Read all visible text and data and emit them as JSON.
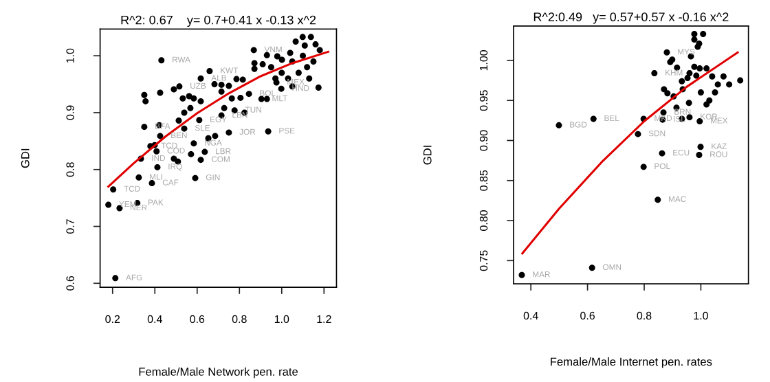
{
  "chart_data": [
    {
      "type": "scatter",
      "title": "R^2: 0.67    y= 0.7+0.41 x -0.13 x^2",
      "xlabel": "Female/Male Network pen. rate",
      "ylabel": "GDI",
      "xlim": [
        0.141,
        1.259
      ],
      "ylim": [
        0.593,
        1.047
      ],
      "xticks": [
        0.2,
        0.4,
        0.6,
        0.8,
        {
          "value": 1.0,
          "label": "1.0"
        },
        1.2
      ],
      "yticks": [
        0.6,
        0.7,
        0.8,
        0.9,
        {
          "value": 1.0,
          "label": "1.0"
        }
      ],
      "series": [
        {
          "marker": "circle",
          "color": "#000000",
          "x": [
            0.431,
            0.659,
            0.617,
            0.682,
            0.715,
            0.715,
            0.75,
            0.786,
            0.816,
            0.868,
            0.871,
            0.871,
            0.91,
            0.93,
            0.979,
            1.001,
            1.04,
            1.066,
            1.099,
            1.138,
            1.109,
            0.998,
            1.05,
            1.174,
            0.35,
            0.356,
            0.425,
            0.49,
            0.516,
            0.532,
            0.562,
            0.584,
            0.617,
            0.764,
            0.805,
            0.845,
            0.904,
            0.93,
            0.568,
            0.539,
            0.728,
            0.777,
            0.824,
            0.715,
            0.35,
            0.421,
            0.513,
            0.61,
            0.539,
            0.425,
            0.936,
            0.75,
            0.685,
            0.653,
            0.584,
            0.379,
            0.399,
            0.408,
            0.334,
            0.49,
            0.509,
            0.571,
            0.636,
            0.617,
            0.412,
            0.324,
            0.386,
            0.591,
            0.203,
            0.18,
            0.233,
            0.317,
            0.213,
            0.975,
            1.05,
            1.1,
            1.12,
            1.15,
            1.18,
            1.08,
            1.0,
            1.03,
            1.13,
            1.16,
            0.95,
            0.97
          ],
          "values": [
            0.992,
            0.973,
            0.96,
            0.95,
            0.949,
            0.937,
            0.947,
            0.959,
            0.958,
            1.01,
            0.987,
            0.977,
            0.985,
            1.001,
            0.999,
            0.993,
            1.005,
            1.025,
            1.033,
            1.033,
            1.018,
            0.942,
            0.946,
            0.944,
            0.931,
            0.92,
            0.935,
            0.941,
            0.946,
            0.925,
            0.929,
            0.925,
            0.92,
            0.925,
            0.926,
            0.933,
            0.924,
            0.924,
            0.908,
            0.9,
            0.908,
            0.904,
            0.9,
            0.895,
            0.875,
            0.878,
            0.886,
            0.887,
            0.872,
            0.859,
            0.867,
            0.865,
            0.859,
            0.855,
            0.846,
            0.841,
            0.843,
            0.832,
            0.819,
            0.819,
            0.814,
            0.827,
            0.831,
            0.817,
            0.804,
            0.786,
            0.776,
            0.785,
            0.765,
            0.738,
            0.732,
            0.741,
            0.609,
            0.953,
            0.99,
            1.0,
            0.98,
            0.99,
            1.01,
            0.97,
            0.97,
            0.96,
            0.96,
            1.02,
            0.98,
            0.96
          ]
        },
        {
          "type": "line",
          "marker": "none",
          "color": "#e00000",
          "x": [
            0.18,
            0.3,
            0.45,
            0.6,
            0.75,
            0.9,
            1.05,
            1.22
          ],
          "values": [
            0.77,
            0.811,
            0.858,
            0.899,
            0.934,
            0.964,
            0.987,
            1.007
          ]
        }
      ],
      "annotations": [
        {
          "text": "RWA",
          "x": 0.431,
          "y": 0.992
        },
        {
          "text": "KWT",
          "x": 0.659,
          "y": 0.973
        },
        {
          "text": "ALB",
          "x": 0.617,
          "y": 0.96
        },
        {
          "text": "UZB",
          "x": 0.516,
          "y": 0.946
        },
        {
          "text": "VNM",
          "x": 0.868,
          "y": 1.01
        },
        {
          "text": "BOL",
          "x": 0.845,
          "y": 0.933
        },
        {
          "text": "MLT",
          "x": 0.904,
          "y": 0.924
        },
        {
          "text": "MEX",
          "x": 0.975,
          "y": 0.953
        },
        {
          "text": "HND",
          "x": 0.998,
          "y": 0.942
        },
        {
          "text": "PSE",
          "x": 0.936,
          "y": 0.867
        },
        {
          "text": "JOR",
          "x": 0.75,
          "y": 0.865
        },
        {
          "text": "LBN",
          "x": 0.715,
          "y": 0.895
        },
        {
          "text": "EGY",
          "x": 0.61,
          "y": 0.887
        },
        {
          "text": "TUN",
          "x": 0.777,
          "y": 0.904
        },
        {
          "text": "SLE",
          "x": 0.539,
          "y": 0.872
        },
        {
          "text": "BEN",
          "x": 0.425,
          "y": 0.859
        },
        {
          "text": "BFA",
          "x": 0.35,
          "y": 0.875
        },
        {
          "text": "NGA",
          "x": 0.584,
          "y": 0.846
        },
        {
          "text": "TCD",
          "x": 0.379,
          "y": 0.841
        },
        {
          "text": "COD",
          "x": 0.408,
          "y": 0.832
        },
        {
          "text": "LBR",
          "x": 0.636,
          "y": 0.831
        },
        {
          "text": "COM",
          "x": 0.617,
          "y": 0.817
        },
        {
          "text": "IND",
          "x": 0.334,
          "y": 0.819
        },
        {
          "text": "IRQ",
          "x": 0.412,
          "y": 0.804
        },
        {
          "text": "MLI",
          "x": 0.324,
          "y": 0.786
        },
        {
          "text": "CAF",
          "x": 0.386,
          "y": 0.776
        },
        {
          "text": "GIN",
          "x": 0.591,
          "y": 0.785
        },
        {
          "text": "TCD",
          "x": 0.203,
          "y": 0.765
        },
        {
          "text": "YEM",
          "x": 0.18,
          "y": 0.738
        },
        {
          "text": "NER",
          "x": 0.233,
          "y": 0.732
        },
        {
          "text": "PAK",
          "x": 0.317,
          "y": 0.741
        },
        {
          "text": "AFG",
          "x": 0.213,
          "y": 0.609
        }
      ]
    },
    {
      "type": "scatter",
      "title": "R^2:0.49   y= 0.57+0.57 x -0.16 x^2",
      "xlabel": "Female/Male Internet pen. rates",
      "ylabel": "GDI",
      "xlim": [
        0.339,
        1.168
      ],
      "ylim": [
        0.721,
        1.043
      ],
      "xticks": [
        0.4,
        0.6,
        0.8,
        {
          "value": 1.0,
          "label": "1.0"
        }
      ],
      "yticks": [
        {
          "value": 0.75,
          "label": "0.75"
        },
        {
          "value": 0.8,
          "label": "0.80"
        },
        {
          "value": 0.85,
          "label": "0.85"
        },
        {
          "value": 0.9,
          "label": "0.90"
        },
        {
          "value": 0.95,
          "label": "0.95"
        },
        {
          "value": 1.0,
          "label": "1.00"
        }
      ],
      "series": [
        {
          "marker": "circle",
          "color": "#000000",
          "x": [
            0.499,
            0.621,
            0.798,
            0.865,
            0.933,
            0.96,
            0.996,
            0.778,
            0.868,
            0.914,
            0.958,
            0.836,
            0.88,
            0.892,
            0.899,
            0.916,
            0.87,
            0.882,
            0.904,
            0.936,
            0.933,
            0.96,
            0.965,
            0.977,
            1.008,
            0.977,
            0.994,
            0.989,
            0.977,
            0.984,
            0.953,
            1.139,
            0.996,
            0.999,
            0.994,
            0.863,
            0.798,
            0.848,
            0.616,
            0.368,
            1.02,
            1.04,
            1.06,
            1.05,
            1.03,
            1.08,
            1.1,
            1.0,
            1.02
          ],
          "values": [
            0.919,
            0.927,
            0.927,
            0.926,
            0.927,
            0.929,
            0.924,
            0.908,
            0.935,
            0.941,
            0.947,
            0.984,
            1.01,
            0.998,
            1.001,
            0.991,
            0.964,
            0.959,
            0.955,
            0.964,
            0.974,
            0.984,
            1.005,
            1.033,
            1.033,
            1.026,
            1.021,
            1.017,
            0.992,
            0.981,
            0.978,
            0.975,
            0.99,
            0.892,
            0.882,
            0.884,
            0.867,
            0.826,
            0.741,
            0.732,
            0.99,
            0.98,
            0.97,
            0.96,
            0.95,
            0.98,
            0.97,
            0.96,
            0.945
          ]
        },
        {
          "type": "line",
          "marker": "none",
          "color": "#e00000",
          "x": [
            0.37,
            0.5,
            0.65,
            0.8,
            0.95,
            1.13
          ],
          "values": [
            0.759,
            0.815,
            0.873,
            0.924,
            0.967,
            1.01
          ]
        }
      ],
      "annotations": [
        {
          "text": "BGD",
          "x": 0.499,
          "y": 0.919
        },
        {
          "text": "BEL",
          "x": 0.621,
          "y": 0.927
        },
        {
          "text": "MKD",
          "x": 0.798,
          "y": 0.927
        },
        {
          "text": "ISL",
          "x": 0.865,
          "y": 0.926
        },
        {
          "text": "KOR",
          "x": 0.96,
          "y": 0.929
        },
        {
          "text": "MEX",
          "x": 0.996,
          "y": 0.924
        },
        {
          "text": "SDN",
          "x": 0.778,
          "y": 0.908
        },
        {
          "text": "BRN",
          "x": 0.868,
          "y": 0.935
        },
        {
          "text": "KHM",
          "x": 0.836,
          "y": 0.984
        },
        {
          "text": "MYS",
          "x": 0.88,
          "y": 1.01
        },
        {
          "text": "KAZ",
          "x": 0.999,
          "y": 0.892
        },
        {
          "text": "ROU",
          "x": 0.994,
          "y": 0.882
        },
        {
          "text": "ECU",
          "x": 0.863,
          "y": 0.884
        },
        {
          "text": "POL",
          "x": 0.798,
          "y": 0.867
        },
        {
          "text": "MAC",
          "x": 0.848,
          "y": 0.826
        },
        {
          "text": "OMN",
          "x": 0.616,
          "y": 0.741
        },
        {
          "text": "MAR",
          "x": 0.368,
          "y": 0.732
        }
      ]
    }
  ]
}
